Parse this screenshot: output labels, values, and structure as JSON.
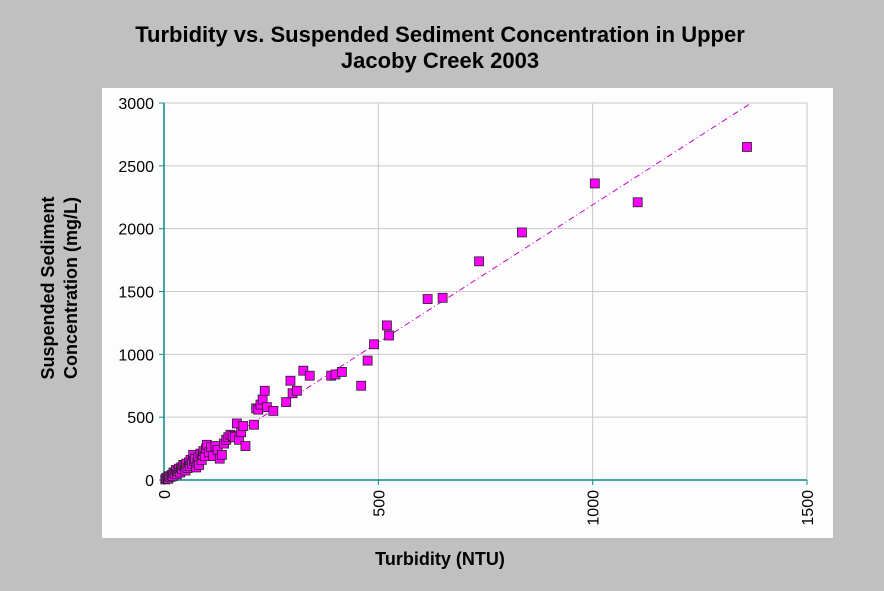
{
  "chart_data": {
    "type": "scatter",
    "title_lines": [
      "Turbidity vs. Suspended Sediment Concentration in Upper",
      "Jacoby Creek 2003"
    ],
    "xlabel": "Turbidity (NTU)",
    "ylabel_lines": [
      "Suspended Sediment",
      "Concentration (mg/L)"
    ],
    "xlim": [
      0,
      1500
    ],
    "ylim": [
      0,
      3000
    ],
    "xticks": [
      0,
      500,
      1000,
      1500
    ],
    "yticks": [
      0,
      500,
      1000,
      1500,
      2000,
      2500,
      3000
    ],
    "grid": true,
    "marker_color": "#ff00ff",
    "trendline_color": "#cc00cc",
    "trendline": {
      "x": [
        0,
        1370
      ],
      "y": [
        0,
        3000
      ]
    },
    "series": [
      {
        "points": [
          [
            3,
            5
          ],
          [
            5,
            15
          ],
          [
            8,
            20
          ],
          [
            10,
            10
          ],
          [
            12,
            30
          ],
          [
            15,
            25
          ],
          [
            18,
            40
          ],
          [
            20,
            30
          ],
          [
            22,
            60
          ],
          [
            25,
            50
          ],
          [
            28,
            80
          ],
          [
            30,
            45
          ],
          [
            32,
            70
          ],
          [
            35,
            90
          ],
          [
            38,
            60
          ],
          [
            40,
            100
          ],
          [
            42,
            85
          ],
          [
            45,
            120
          ],
          [
            48,
            110
          ],
          [
            50,
            75
          ],
          [
            52,
            130
          ],
          [
            55,
            95
          ],
          [
            58,
            140
          ],
          [
            60,
            110
          ],
          [
            62,
            160
          ],
          [
            65,
            130
          ],
          [
            68,
            200
          ],
          [
            70,
            150
          ],
          [
            72,
            170
          ],
          [
            75,
            100
          ],
          [
            78,
            140
          ],
          [
            80,
            180
          ],
          [
            82,
            120
          ],
          [
            85,
            210
          ],
          [
            88,
            160
          ],
          [
            90,
            200
          ],
          [
            92,
            230
          ],
          [
            95,
            190
          ],
          [
            98,
            250
          ],
          [
            100,
            280
          ],
          [
            105,
            220
          ],
          [
            110,
            260
          ],
          [
            115,
            190
          ],
          [
            120,
            270
          ],
          [
            125,
            240
          ],
          [
            130,
            170
          ],
          [
            135,
            200
          ],
          [
            140,
            290
          ],
          [
            145,
            320
          ],
          [
            150,
            340
          ],
          [
            155,
            360
          ],
          [
            160,
            350
          ],
          [
            165,
            340
          ],
          [
            170,
            450
          ],
          [
            175,
            320
          ],
          [
            180,
            380
          ],
          [
            185,
            430
          ],
          [
            190,
            270
          ],
          [
            210,
            440
          ],
          [
            215,
            570
          ],
          [
            220,
            560
          ],
          [
            225,
            600
          ],
          [
            230,
            640
          ],
          [
            235,
            710
          ],
          [
            240,
            580
          ],
          [
            255,
            550
          ],
          [
            285,
            620
          ],
          [
            295,
            790
          ],
          [
            300,
            690
          ],
          [
            310,
            710
          ],
          [
            325,
            870
          ],
          [
            340,
            830
          ],
          [
            390,
            830
          ],
          [
            400,
            840
          ],
          [
            415,
            860
          ],
          [
            460,
            750
          ],
          [
            475,
            950
          ],
          [
            490,
            1080
          ],
          [
            520,
            1230
          ],
          [
            525,
            1150
          ],
          [
            615,
            1440
          ],
          [
            650,
            1450
          ],
          [
            735,
            1740
          ],
          [
            835,
            1970
          ],
          [
            1005,
            2360
          ],
          [
            1105,
            2210
          ],
          [
            1360,
            2650
          ]
        ]
      }
    ]
  }
}
